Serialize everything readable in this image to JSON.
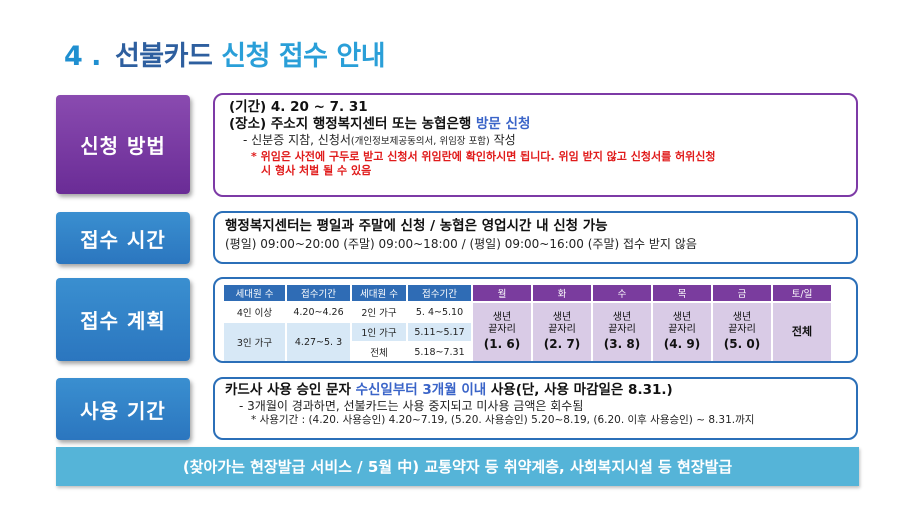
{
  "title": {
    "number": "4 .",
    "main": "선불카드",
    "accent": "신청 접수 안내"
  },
  "sections": {
    "method": {
      "label": "신청 방법",
      "line1": "(기간) 4. 20 ~ 7. 31",
      "line2_pre": "(장소) 주소지 행정복지센터 또는 농협은행 ",
      "line2_blue": "방문 신청",
      "line3_pre": "- 신분증 지참, 신청서",
      "line3_small": "(개인정보제공동의서, 위임장 포함)",
      "line3_post": " 작성",
      "note1": "* 위임은 사전에 구두로 받고 신청서 위임란에 확인하시면 됩니다. 위임 받지 않고 신청서를 허위신청",
      "note2": "시 형사 처벌 될 수 있음"
    },
    "time": {
      "label": "접수 시간",
      "line1": "행정복지센터는 평일과 주말에 신청 / 농협은 영업시간 내 신청 가능",
      "line2": "(평일) 09:00~20:00  (주말) 09:00~18:00  / (평일) 09:00~16:00  (주말) 접수 받지 않음"
    },
    "plan": {
      "label": "접수 계획",
      "headers": [
        "세대원 수",
        "접수기간",
        "세대원 수",
        "접수기간",
        "월",
        "화",
        "수",
        "목",
        "금",
        "토/일"
      ],
      "rows": {
        "a1": "4인 이상",
        "a2": "4.20~4.26",
        "a3": "3인 가구",
        "a4": "4.27~5. 3",
        "b1": "2인 가구",
        "b2": "5. 4~5.10",
        "b3": "1인 가구",
        "b4": "5.11~5.17",
        "b5": "전체",
        "b6": "5.18~7.31"
      },
      "days": [
        {
          "l1": "생년",
          "l2": "끝자리",
          "l3": "(1. 6)"
        },
        {
          "l1": "생년",
          "l2": "끝자리",
          "l3": "(2. 7)"
        },
        {
          "l1": "생년",
          "l2": "끝자리",
          "l3": "(3. 8)"
        },
        {
          "l1": "생년",
          "l2": "끝자리",
          "l3": "(4. 9)"
        },
        {
          "l1": "생년",
          "l2": "끝자리",
          "l3": "(5. 0)"
        }
      ],
      "weekend": "전체"
    },
    "usage": {
      "label": "사용 기간",
      "line1_pre": "카드사 사용 승인 문자 ",
      "line1_blue": "수신일부터 3개월 이내",
      "line1_post": " 사용(단, 사용 마감일은 8.31.)",
      "line2": "- 3개월이 경과하면, 선불카드는 사용 중지되고 미사용 금액은 회수됨",
      "line3": "* 사용기간 : (4.20. 사용승인) 4.20~7.19,   (5.20. 사용승인) 5.20~8.19,   (6.20. 이후 사용승인) ~ 8.31.까지"
    }
  },
  "bottom_banner": "(찾아가는 현장발급 서비스 / 5월 中)  교통약자 등 취약계층, 사회복지시설 등 현장발급"
}
